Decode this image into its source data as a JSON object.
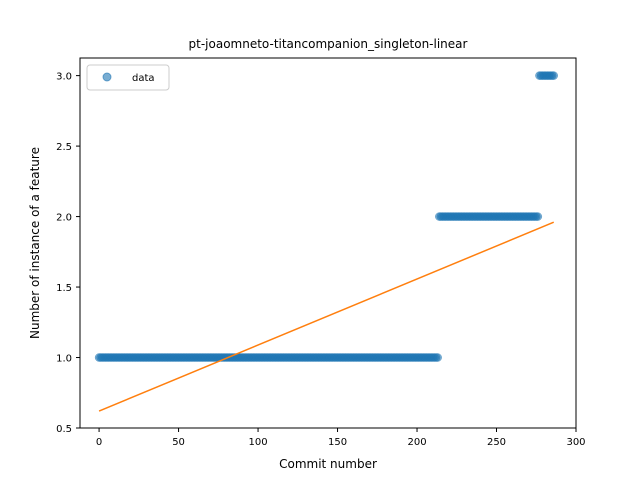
{
  "chart_data": {
    "type": "scatter",
    "title": "pt-joaomneto-titancompanion_singleton-linear",
    "xlabel": "Commit number",
    "ylabel": "Number of instance of a feature",
    "xlim": [
      -12,
      300
    ],
    "ylim": [
      0.5,
      3.125
    ],
    "xticks": [
      0,
      50,
      100,
      150,
      200,
      250,
      300
    ],
    "yticks": [
      0.5,
      1.0,
      1.5,
      2.0,
      2.5,
      3.0
    ],
    "xtick_labels": [
      "0",
      "50",
      "100",
      "150",
      "200",
      "250",
      "300"
    ],
    "ytick_labels": [
      "0.5",
      "1.0",
      "1.5",
      "2.0",
      "2.5",
      "3.0"
    ],
    "grid": false,
    "legend": {
      "position": "top-left",
      "entries": [
        "data"
      ]
    },
    "series": [
      {
        "name": "data",
        "kind": "points",
        "color": "#1f77b4",
        "segments": [
          {
            "x_start": 0,
            "x_end": 213,
            "y": 1
          },
          {
            "x_start": 214,
            "x_end": 276,
            "y": 2
          },
          {
            "x_start": 277,
            "x_end": 286,
            "y": 3
          }
        ]
      },
      {
        "kind": "line",
        "color": "#ff7f0e",
        "points": [
          [
            0,
            0.62
          ],
          [
            286,
            1.96
          ]
        ]
      }
    ]
  }
}
